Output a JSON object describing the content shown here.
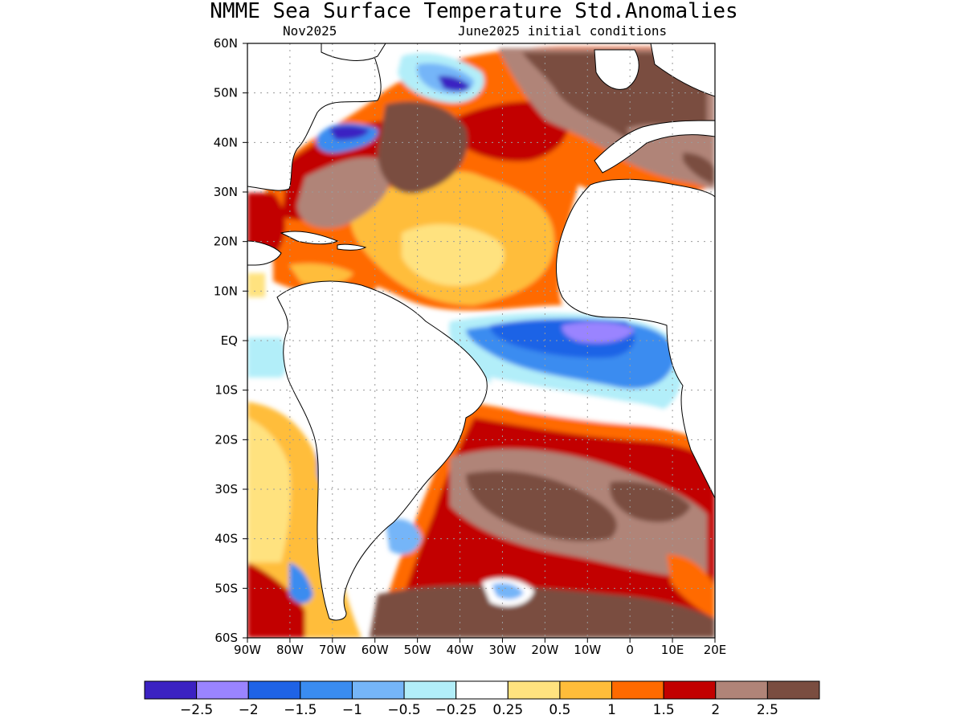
{
  "title": "NMME Sea Surface Temperature Std.Anomalies",
  "subtitle_left": "Nov2025",
  "subtitle_right": "June2025 initial conditions",
  "lat_labels": [
    "60N",
    "50N",
    "40N",
    "30N",
    "20N",
    "10N",
    "EQ",
    "10S",
    "20S",
    "30S",
    "40S",
    "50S",
    "60S"
  ],
  "lon_labels": [
    "90W",
    "80W",
    "70W",
    "60W",
    "50W",
    "40W",
    "30W",
    "20W",
    "10W",
    "0",
    "10E",
    "20E"
  ],
  "colorbar": {
    "colors": [
      "#3b22c2",
      "#9a84ff",
      "#1f63e6",
      "#3a8cf0",
      "#75b5f8",
      "#b2eef9",
      "#ffffff",
      "#ffe27f",
      "#ffbd3a",
      "#ff6a00",
      "#c20000",
      "#b08478",
      "#7a4d40"
    ],
    "labels": [
      "−2.5",
      "−2",
      "−1.5",
      "−1",
      "−0.5",
      "−0.25",
      "0.25",
      "0.5",
      "1",
      "1.5",
      "2",
      "2.5"
    ]
  },
  "map_data": {
    "lon_range": [
      -90,
      20
    ],
    "lat_range": [
      -60,
      60
    ],
    "grid": "dotted",
    "units": "standardized anomaly"
  }
}
